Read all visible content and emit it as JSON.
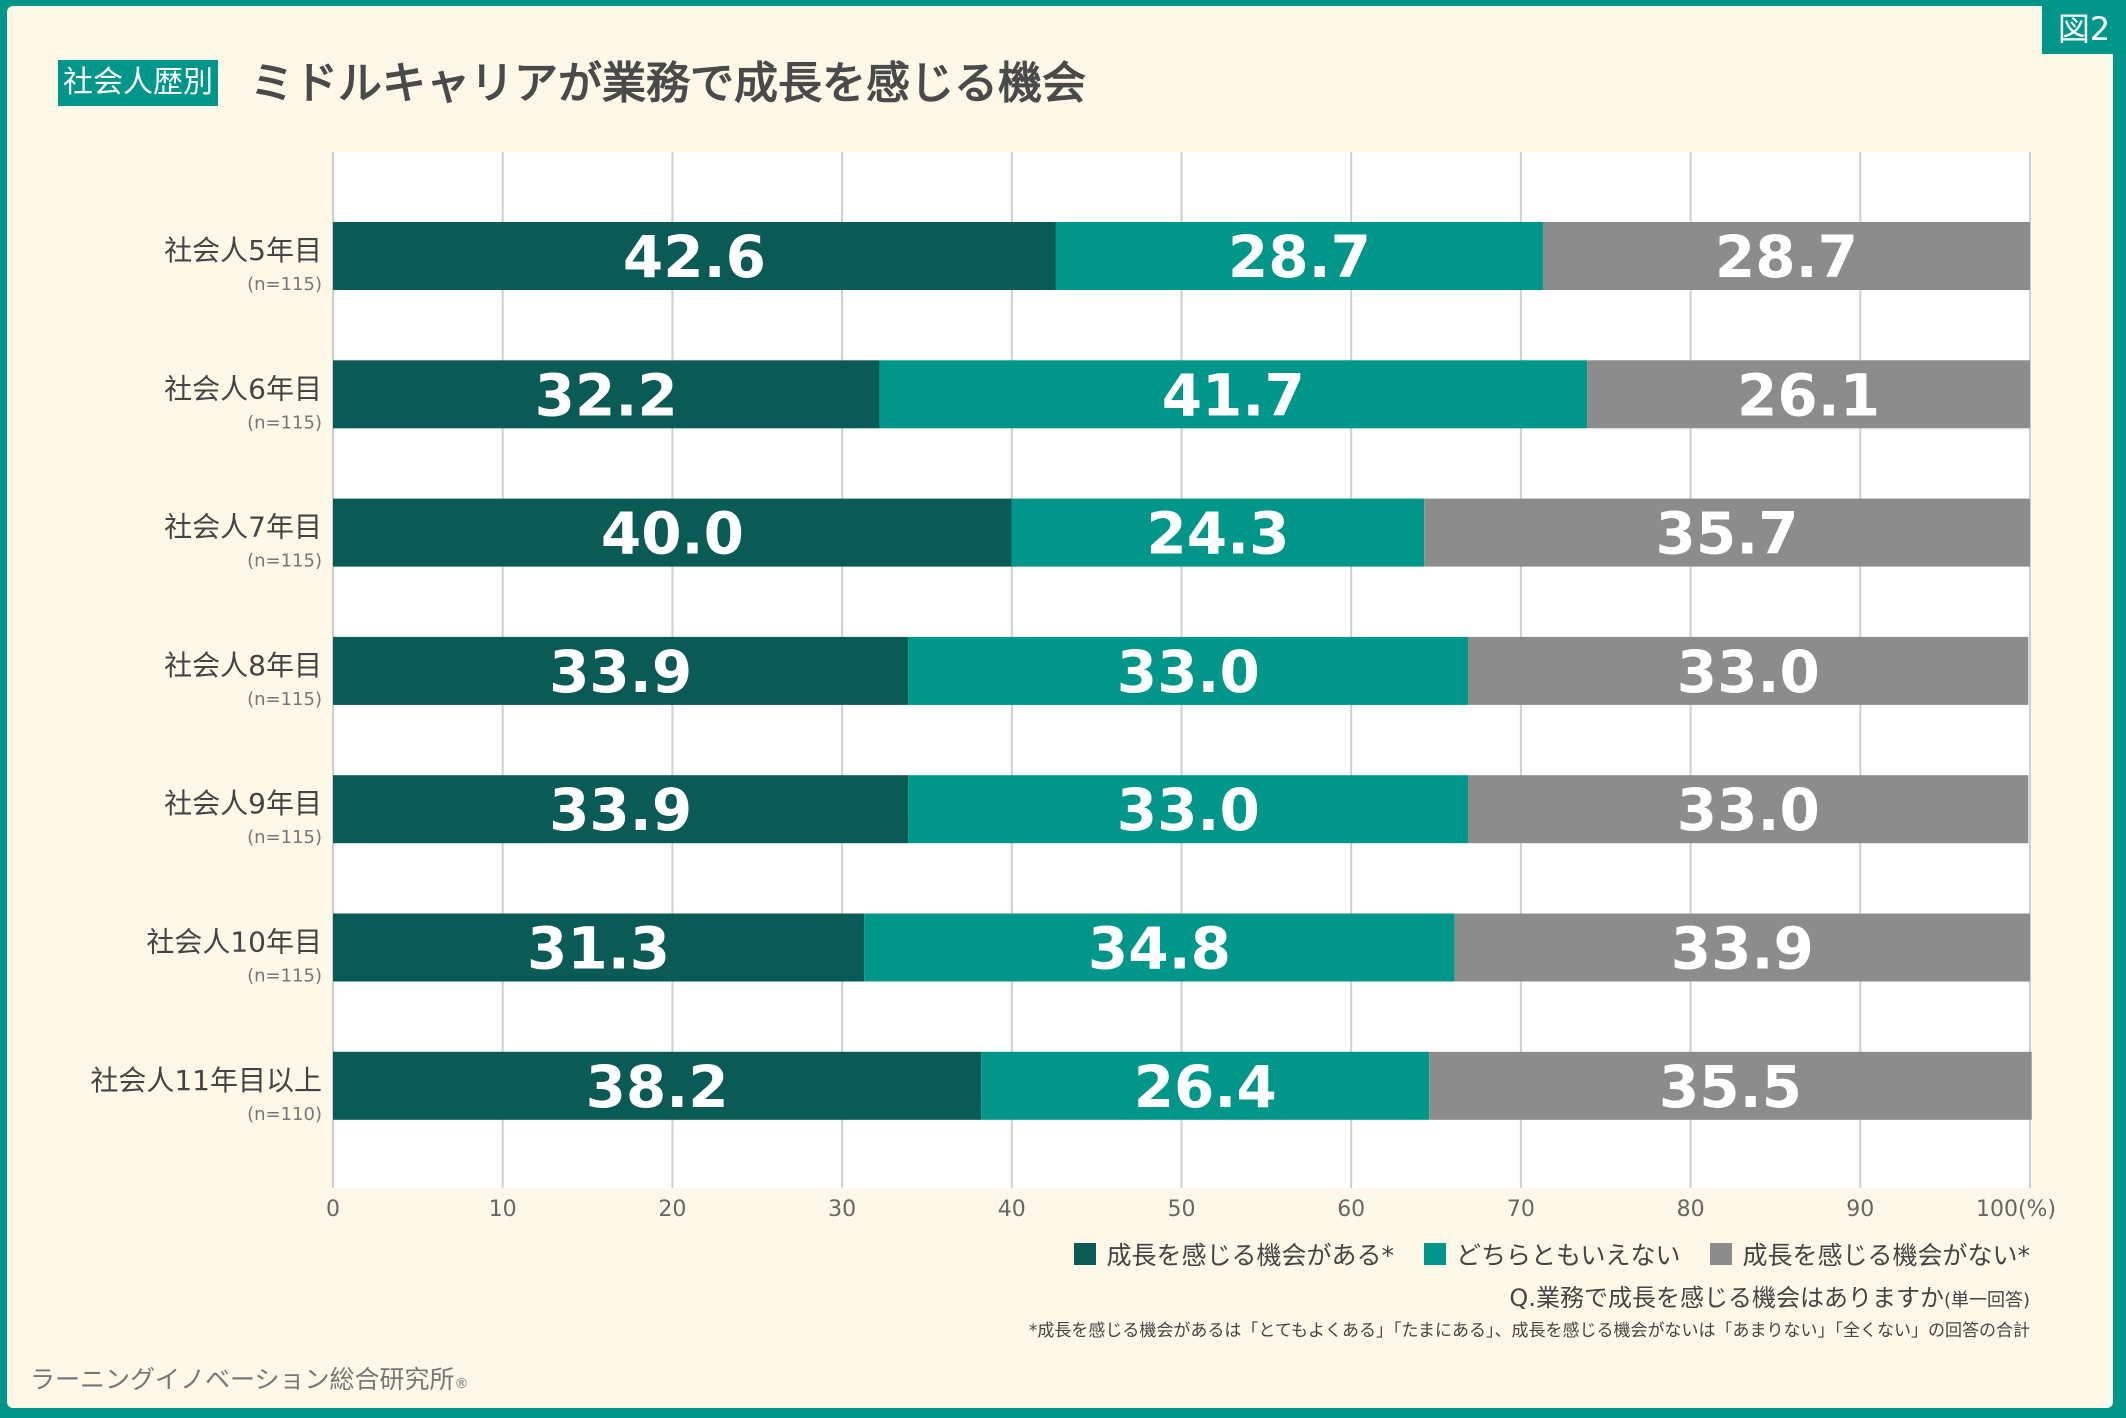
{
  "figure_label": "図2",
  "title_tag": "社会人歴別",
  "title": "ミドルキャリアが業務で成長を感じる機会",
  "colors": {
    "frame": "#00968a",
    "background": "#fdf8e8",
    "series": [
      "#0a5a55",
      "#00968a",
      "#8c8c8c"
    ]
  },
  "chart_data": {
    "type": "bar",
    "orientation": "horizontal",
    "stacked": true,
    "categories": [
      "社会人5年目",
      "社会人6年目",
      "社会人7年目",
      "社会人8年目",
      "社会人9年目",
      "社会人10年目",
      "社会人11年目以上"
    ],
    "sample_sizes": [
      "(n=115)",
      "(n=115)",
      "(n=115)",
      "(n=115)",
      "(n=115)",
      "(n=115)",
      "(n=110)"
    ],
    "series": [
      {
        "name": "成長を感じる機会がある*",
        "values": [
          42.6,
          32.2,
          40.0,
          33.9,
          33.9,
          31.3,
          38.2
        ]
      },
      {
        "name": "どちらともいえない",
        "values": [
          28.7,
          41.7,
          24.3,
          33.0,
          33.0,
          34.8,
          26.4
        ]
      },
      {
        "name": "成長を感じる機会がない*",
        "values": [
          28.7,
          26.1,
          35.7,
          33.0,
          33.0,
          33.9,
          35.5
        ]
      }
    ],
    "xlim": [
      0,
      100
    ],
    "xticks": [
      "0",
      "10",
      "20",
      "30",
      "40",
      "50",
      "60",
      "70",
      "80",
      "90",
      "100(%)"
    ],
    "grid": true,
    "legend": "bottom-right"
  },
  "question": "Q.業務で成長を感じる機会はありますか",
  "question_note": "(単一回答)",
  "footnote": "*成長を感じる機会があるは「とてもよくある」「たまにある」、成長を感じる機会がないは「あまりない」「全くない」の回答の合計",
  "credit": "ラーニングイノベーション総合研究所",
  "credit_mark": "®"
}
